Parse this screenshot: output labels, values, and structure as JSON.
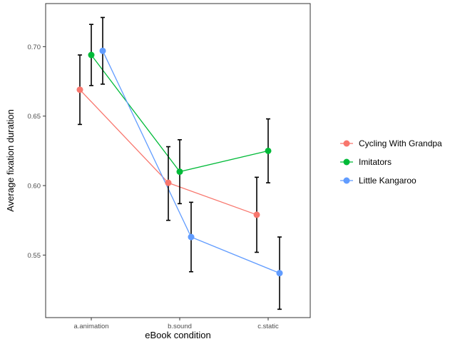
{
  "chart_data": {
    "type": "line",
    "title": "",
    "xlabel": "eBook condition",
    "ylabel": "Average fixation duration",
    "categories": [
      "a.animation",
      "b.sound",
      "c.static"
    ],
    "y_ticks": [
      "0.55",
      "0.60",
      "0.65",
      "0.70"
    ],
    "ylim": [
      0.505,
      0.731
    ],
    "grid": false,
    "legend_position": "right",
    "error_bars": true,
    "series": [
      {
        "name": "Cycling With Grandpa",
        "color": "#F8766D",
        "values": [
          0.669,
          0.602,
          0.579
        ],
        "lower": [
          0.644,
          0.575,
          0.552
        ],
        "upper": [
          0.694,
          0.628,
          0.606
        ]
      },
      {
        "name": "Imitators",
        "color": "#00BA38",
        "values": [
          0.694,
          0.61,
          0.625
        ],
        "lower": [
          0.672,
          0.587,
          0.602
        ],
        "upper": [
          0.716,
          0.633,
          0.648
        ]
      },
      {
        "name": "Little Kangaroo",
        "color": "#619CFF",
        "values": [
          0.697,
          0.563,
          0.537
        ],
        "lower": [
          0.673,
          0.538,
          0.511
        ],
        "upper": [
          0.721,
          0.588,
          0.563
        ]
      }
    ]
  }
}
